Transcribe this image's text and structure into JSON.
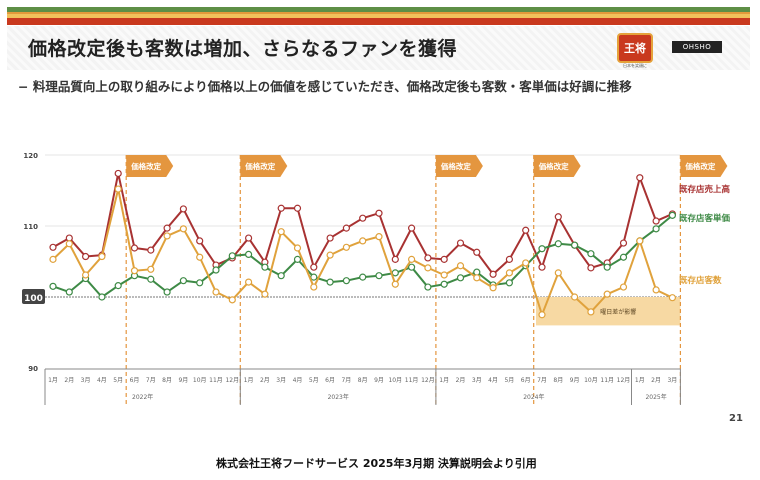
{
  "header": {
    "title": "価格改定後も客数は増加、さらなるファンを獲得",
    "subtitle": "− 料理品質向上の取り組みにより価格以上の価値を感じていただき、価格改定後も客数・客単価は好調に推移",
    "logo_main": "王将",
    "logo_main_top": "餃子の",
    "logo_main_sub": "日本を笑顔に",
    "logo_secondary": "OHSHO"
  },
  "page_number": "21",
  "footer": "株式会社王将フードサービス 2025年3月期 決算説明会より引用",
  "colors": {
    "sales": "#a83232",
    "unit_price": "#3e8a46",
    "customers": "#e0a23c",
    "tag": "#e4963f",
    "annotation_bg": "#f7d9a3"
  },
  "chart_data": {
    "type": "line",
    "title": "",
    "xlabel": "",
    "ylabel": "",
    "ylim": [
      90,
      120
    ],
    "yticks": [
      "120",
      "110",
      "100",
      "90"
    ],
    "baseline": 100,
    "grid": true,
    "categories": [
      "1月",
      "2月",
      "3月",
      "4月",
      "5月",
      "6月",
      "7月",
      "8月",
      "9月",
      "10月",
      "11月",
      "12月",
      "1月",
      "2月",
      "3月",
      "4月",
      "5月",
      "6月",
      "7月",
      "8月",
      "9月",
      "10月",
      "11月",
      "12月",
      "1月",
      "2月",
      "3月",
      "4月",
      "5月",
      "6月",
      "7月",
      "8月",
      "9月",
      "10月",
      "11月",
      "12月",
      "1月",
      "2月",
      "3月"
    ],
    "years": [
      {
        "label": "2022年",
        "months": 12
      },
      {
        "label": "2023年",
        "months": 12
      },
      {
        "label": "2024年",
        "months": 12
      },
      {
        "label": "2025年",
        "months": 3
      }
    ],
    "series": [
      {
        "name": "既存店売上高",
        "key": "sales",
        "values": [
          107.0,
          108.3,
          105.7,
          105.9,
          117.4,
          106.9,
          106.6,
          109.7,
          112.4,
          107.9,
          104.5,
          105.5,
          108.3,
          104.9,
          112.5,
          112.5,
          104.2,
          108.3,
          109.7,
          111.1,
          111.8,
          105.3,
          109.7,
          105.5,
          105.3,
          107.6,
          106.3,
          103.2,
          105.3,
          109.4,
          104.2,
          111.3,
          107.3,
          104.1,
          104.8,
          107.6,
          116.8,
          110.7,
          111.7
        ]
      },
      {
        "name": "既存店客単価",
        "key": "unit_price",
        "values": [
          101.5,
          100.7,
          102.6,
          100.0,
          101.6,
          103.0,
          102.5,
          100.7,
          102.3,
          102.0,
          103.8,
          105.8,
          106.0,
          104.2,
          103.0,
          105.3,
          102.8,
          102.1,
          102.3,
          102.8,
          103.0,
          103.4,
          104.2,
          101.4,
          101.8,
          102.7,
          103.5,
          101.7,
          102.0,
          104.4,
          106.8,
          107.5,
          107.3,
          106.1,
          104.2,
          105.6,
          107.9,
          109.6,
          111.5
        ]
      },
      {
        "name": "既存店客数",
        "key": "customers",
        "values": [
          105.3,
          107.5,
          103.1,
          105.7,
          115.2,
          103.7,
          103.9,
          108.6,
          109.6,
          105.6,
          100.7,
          99.6,
          102.1,
          100.4,
          109.2,
          106.9,
          101.4,
          105.9,
          107.0,
          107.9,
          108.5,
          101.8,
          105.3,
          104.1,
          103.1,
          104.4,
          102.7,
          101.3,
          103.4,
          104.8,
          97.5,
          103.4,
          100.0,
          97.9,
          100.4,
          101.4,
          107.9,
          101.0,
          99.9
        ]
      }
    ],
    "price_revisions": {
      "label": "価格改定",
      "after_index": [
        4,
        11,
        23,
        29,
        38
      ]
    },
    "annotation": {
      "text": "曜日差が影響",
      "from_index": 30,
      "to_index": 38,
      "y_range": [
        96,
        100
      ]
    },
    "legend_placement": "right"
  }
}
